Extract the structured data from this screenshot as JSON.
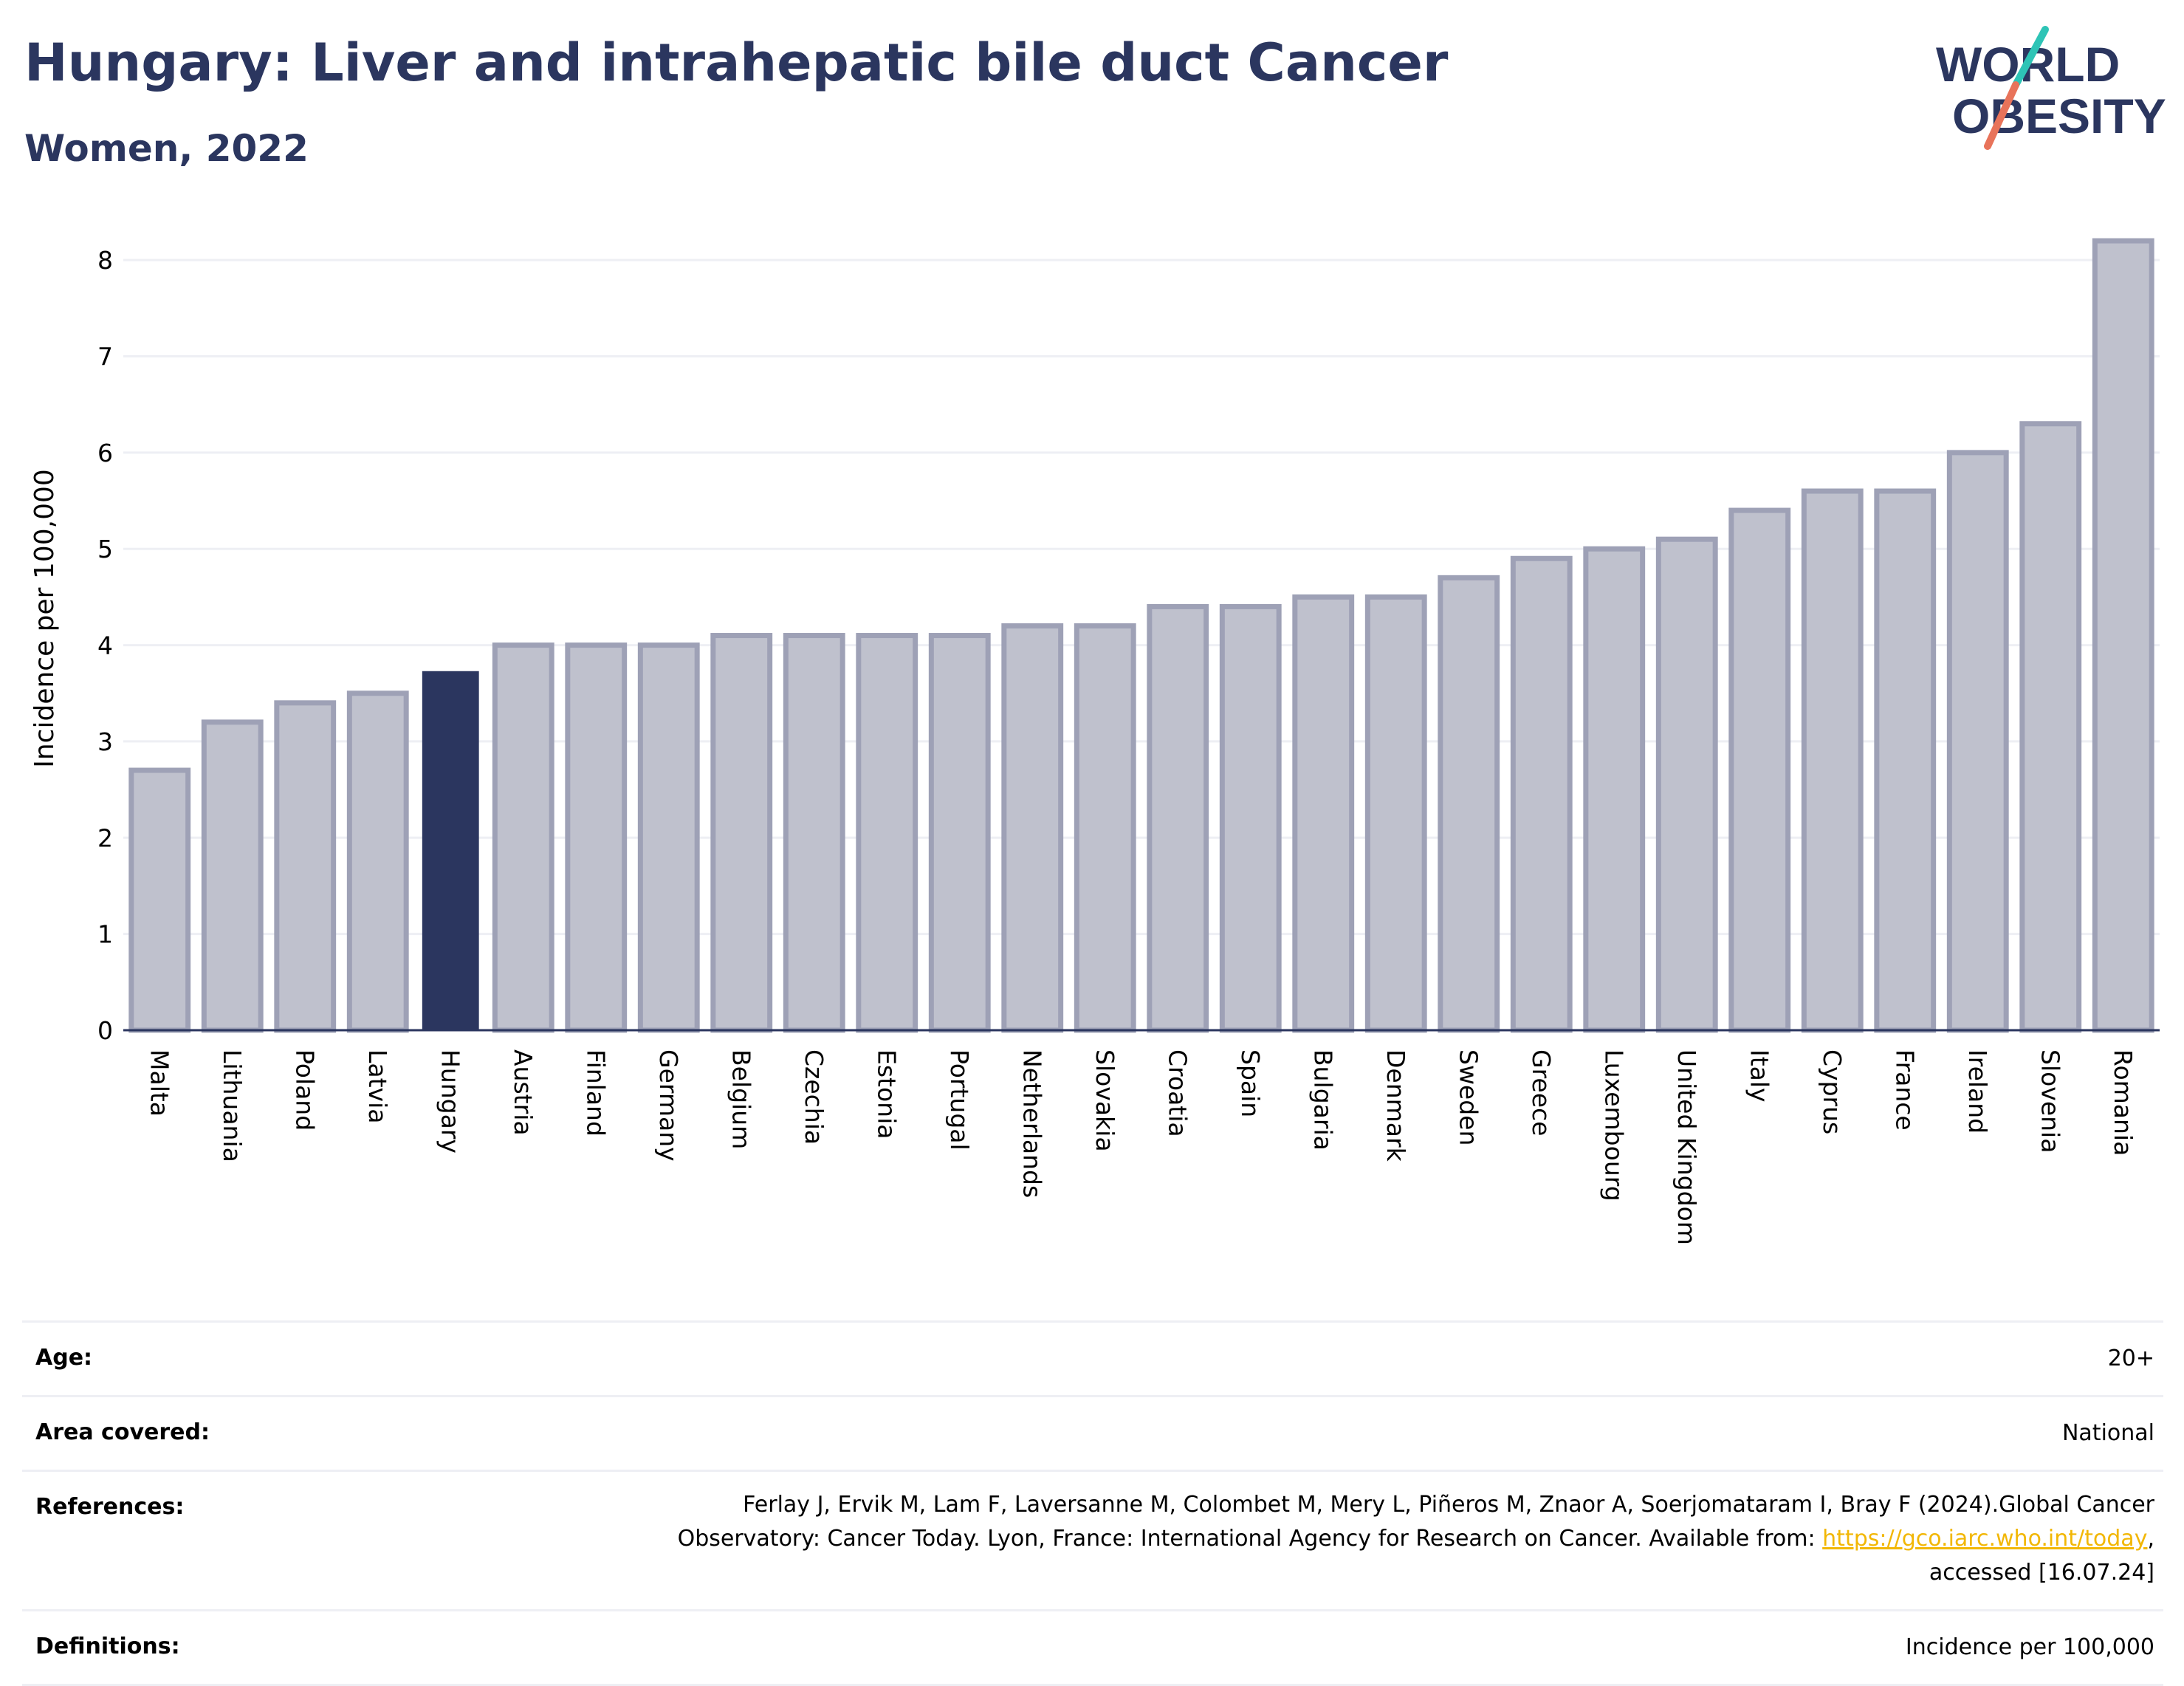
{
  "header": {
    "title": "Hungary: Liver and intrahepatic bile duct Cancer",
    "subtitle": "Women, 2022"
  },
  "logo": {
    "line1": "WORLD",
    "line2": "OBESITY",
    "icon": "world-obesity-logo",
    "colors": {
      "text": "#2b365f",
      "slash_top": "#2ec4b6",
      "slash_bottom": "#e8735a"
    }
  },
  "chart_data": {
    "type": "bar",
    "ylabel": "Incidence per 100,000",
    "xlabel": "",
    "ylim": [
      0,
      8.4
    ],
    "yticks": [
      0,
      1,
      2,
      3,
      4,
      5,
      6,
      7,
      8
    ],
    "grid": true,
    "highlight": "Hungary",
    "colors": {
      "bar": "#bfc1cd",
      "bar_border": "#9ea1b6",
      "highlight": "#2b365f",
      "grid": "#eeeff4"
    },
    "categories": [
      "Malta",
      "Lithuania",
      "Poland",
      "Latvia",
      "Hungary",
      "Austria",
      "Finland",
      "Germany",
      "Belgium",
      "Czechia",
      "Estonia",
      "Portugal",
      "Netherlands",
      "Slovakia",
      "Croatia",
      "Spain",
      "Bulgaria",
      "Denmark",
      "Sweden",
      "Greece",
      "Luxembourg",
      "United Kingdom",
      "Italy",
      "Cyprus",
      "France",
      "Ireland",
      "Slovenia",
      "Romania"
    ],
    "values": [
      2.7,
      3.2,
      3.4,
      3.5,
      3.73,
      4.0,
      4.0,
      4.0,
      4.1,
      4.1,
      4.1,
      4.1,
      4.2,
      4.2,
      4.4,
      4.4,
      4.5,
      4.5,
      4.7,
      4.9,
      5.0,
      5.1,
      5.4,
      5.6,
      5.6,
      6.0,
      6.3,
      8.2
    ]
  },
  "meta": {
    "age_label": "Age:",
    "age_value": "20+",
    "area_label": "Area covered:",
    "area_value": "National",
    "references_label": "References:",
    "references_line1": "Ferlay J, Ervik M, Lam F, Laversanne M, Colombet M, Mery L, Piñeros M, Znaor A, Soerjomataram I, Bray F (2024).Global Cancer",
    "references_line2": "Observatory: Cancer Today. Lyon, France: International Agency for Research on Cancer. Available from:",
    "references_link": "https://gco.iarc.who.int/today",
    "references_line3": "accessed [16.07.24]",
    "definitions_label": "Definitions:",
    "definitions_value": "Incidence per 100,000"
  }
}
